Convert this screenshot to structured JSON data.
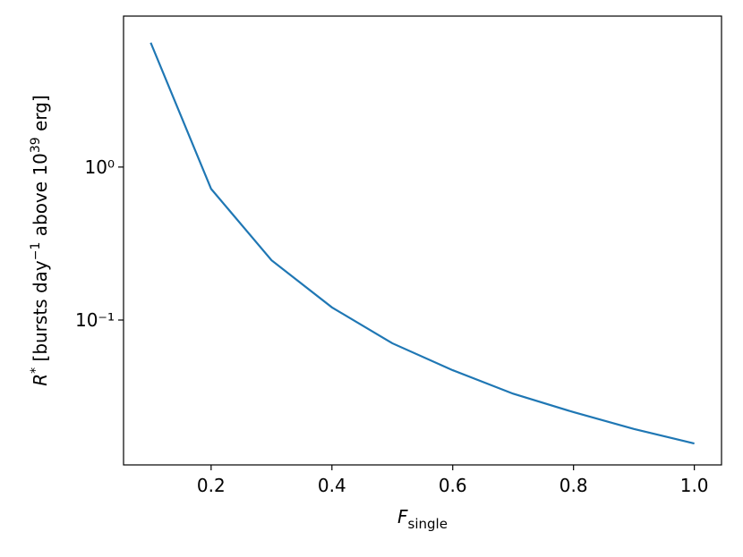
{
  "chart_data": {
    "type": "line",
    "x_label": "F",
    "x_label_sub": "single",
    "y_label": [
      "R",
      "*",
      " [bursts day",
      "−1",
      " above 10",
      "39",
      " erg]"
    ],
    "x": [
      0.1,
      0.2,
      0.3,
      0.4,
      0.5,
      0.6,
      0.7,
      0.8,
      0.9,
      1.0
    ],
    "series": [
      {
        "color": "#1f77b4",
        "values": [
          6.5,
          0.72,
          0.246,
          0.121,
          0.0705,
          0.047,
          0.033,
          0.025,
          0.0194,
          0.0156
        ]
      }
    ],
    "xlim": [
      0.055,
      1.045
    ],
    "xticks": [
      0.2,
      0.4,
      0.6,
      0.8,
      {
        "value": 1,
        "label": "1.0"
      }
    ],
    "ylim": [
      0.0113,
      9.7
    ],
    "ylog": true,
    "yticks": [
      {
        "value": 0.1,
        "label": "10⁻¹"
      },
      {
        "value": 1,
        "label": "10⁰"
      }
    ]
  }
}
